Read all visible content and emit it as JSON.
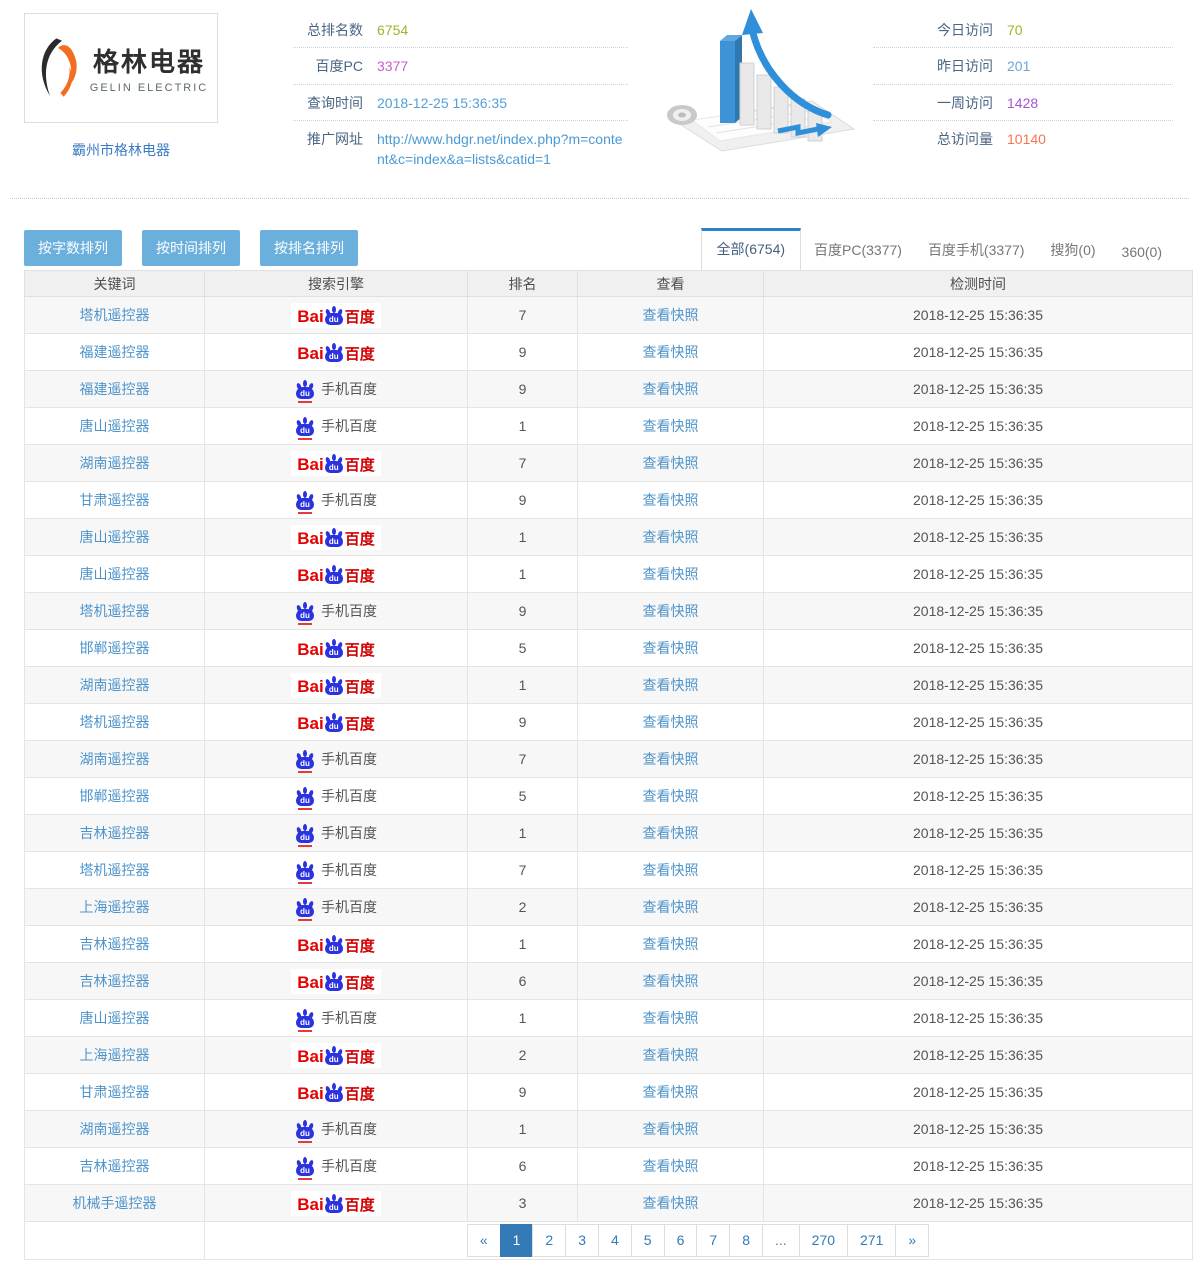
{
  "header": {
    "logo": {
      "cn": "格林电器",
      "en": "GELIN ELECTRIC"
    },
    "site_name": "霸州市格林电器",
    "stats_left": [
      {
        "label": "总排名数",
        "value": "6754",
        "color": "#9db62d"
      },
      {
        "label": "百度PC",
        "value": "3377",
        "color": "#c95fc9"
      },
      {
        "label": "查询时间",
        "value": "2018-12-25 15:36:35",
        "color": "#54a0da"
      },
      {
        "label": "推广网址",
        "value": "http://www.hdgr.net/index.php?m=content&c=index&a=lists&catid=1",
        "color": "#4a9bd5"
      }
    ],
    "stats_right": [
      {
        "label": "今日访问",
        "value": "70",
        "color": "#9db62d"
      },
      {
        "label": "昨日访问",
        "value": "201",
        "color": "#6ca6d9"
      },
      {
        "label": "一周访问",
        "value": "1428",
        "color": "#a653d6"
      },
      {
        "label": "总访问量",
        "value": "10140",
        "color": "#f4754f"
      }
    ]
  },
  "toolbar": {
    "sort_buttons": [
      "按字数排列",
      "按时间排列",
      "按排名排列"
    ]
  },
  "tabs": [
    {
      "label": "全部(6754)",
      "active": true
    },
    {
      "label": "百度PC(3377)",
      "active": false
    },
    {
      "label": "百度手机(3377)",
      "active": false
    },
    {
      "label": "搜狗(0)",
      "active": false
    },
    {
      "label": "360(0)",
      "active": false
    }
  ],
  "engine_assets": {
    "pc_prefix": "Bai",
    "paw_text": "du",
    "pc_suffix": "百度",
    "mobile_label": "手机百度"
  },
  "table": {
    "headers": [
      "关键词",
      "搜索引擎",
      "排名",
      "查看",
      "检测时间"
    ],
    "view_label": "查看快照",
    "rows": [
      {
        "keyword": "塔机遥控器",
        "engine": "pc",
        "rank": "7",
        "time": "2018-12-25 15:36:35"
      },
      {
        "keyword": "福建遥控器",
        "engine": "pc",
        "rank": "9",
        "time": "2018-12-25 15:36:35"
      },
      {
        "keyword": "福建遥控器",
        "engine": "mobile",
        "rank": "9",
        "time": "2018-12-25 15:36:35"
      },
      {
        "keyword": "唐山遥控器",
        "engine": "mobile",
        "rank": "1",
        "time": "2018-12-25 15:36:35"
      },
      {
        "keyword": "湖南遥控器",
        "engine": "pc",
        "rank": "7",
        "time": "2018-12-25 15:36:35"
      },
      {
        "keyword": "甘肃遥控器",
        "engine": "mobile",
        "rank": "9",
        "time": "2018-12-25 15:36:35"
      },
      {
        "keyword": "唐山遥控器",
        "engine": "pc",
        "rank": "1",
        "time": "2018-12-25 15:36:35"
      },
      {
        "keyword": "唐山遥控器",
        "engine": "pc",
        "rank": "1",
        "time": "2018-12-25 15:36:35"
      },
      {
        "keyword": "塔机遥控器",
        "engine": "mobile",
        "rank": "9",
        "time": "2018-12-25 15:36:35"
      },
      {
        "keyword": "邯郸遥控器",
        "engine": "pc",
        "rank": "5",
        "time": "2018-12-25 15:36:35"
      },
      {
        "keyword": "湖南遥控器",
        "engine": "pc",
        "rank": "1",
        "time": "2018-12-25 15:36:35"
      },
      {
        "keyword": "塔机遥控器",
        "engine": "pc",
        "rank": "9",
        "time": "2018-12-25 15:36:35"
      },
      {
        "keyword": "湖南遥控器",
        "engine": "mobile",
        "rank": "7",
        "time": "2018-12-25 15:36:35"
      },
      {
        "keyword": "邯郸遥控器",
        "engine": "mobile",
        "rank": "5",
        "time": "2018-12-25 15:36:35"
      },
      {
        "keyword": "吉林遥控器",
        "engine": "mobile",
        "rank": "1",
        "time": "2018-12-25 15:36:35"
      },
      {
        "keyword": "塔机遥控器",
        "engine": "mobile",
        "rank": "7",
        "time": "2018-12-25 15:36:35"
      },
      {
        "keyword": "上海遥控器",
        "engine": "mobile",
        "rank": "2",
        "time": "2018-12-25 15:36:35"
      },
      {
        "keyword": "吉林遥控器",
        "engine": "pc",
        "rank": "1",
        "time": "2018-12-25 15:36:35"
      },
      {
        "keyword": "吉林遥控器",
        "engine": "pc",
        "rank": "6",
        "time": "2018-12-25 15:36:35"
      },
      {
        "keyword": "唐山遥控器",
        "engine": "mobile",
        "rank": "1",
        "time": "2018-12-25 15:36:35"
      },
      {
        "keyword": "上海遥控器",
        "engine": "pc",
        "rank": "2",
        "time": "2018-12-25 15:36:35"
      },
      {
        "keyword": "甘肃遥控器",
        "engine": "pc",
        "rank": "9",
        "time": "2018-12-25 15:36:35"
      },
      {
        "keyword": "湖南遥控器",
        "engine": "mobile",
        "rank": "1",
        "time": "2018-12-25 15:36:35"
      },
      {
        "keyword": "吉林遥控器",
        "engine": "mobile",
        "rank": "6",
        "time": "2018-12-25 15:36:35"
      },
      {
        "keyword": "机械手遥控器",
        "engine": "pc",
        "rank": "3",
        "time": "2018-12-25 15:36:35"
      }
    ]
  },
  "pagination": {
    "items": [
      "«",
      "1",
      "2",
      "3",
      "4",
      "5",
      "6",
      "7",
      "8",
      "...",
      "270",
      "271",
      "»"
    ],
    "active": "1"
  }
}
